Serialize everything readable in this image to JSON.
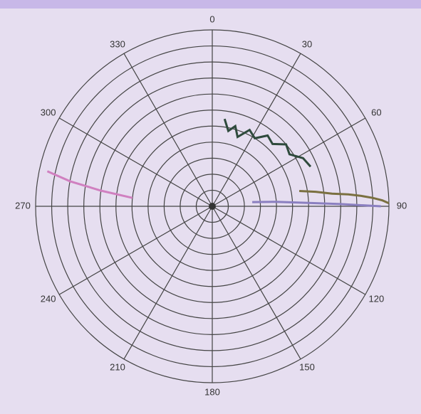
{
  "chart_data": {
    "type": "polar",
    "thetaticks": [
      0,
      30,
      60,
      90,
      120,
      150,
      180,
      210,
      240,
      270,
      300,
      330
    ],
    "direction": "clockwise",
    "zero": "top",
    "rlim": [
      0,
      11
    ],
    "rings": 11,
    "grid": true,
    "series": [
      {
        "color": "#2e4a3c",
        "theta": [
          8,
          12,
          16,
          20,
          26,
          32,
          38,
          44,
          50,
          56,
          62,
          68
        ],
        "values": [
          5.5,
          4.8,
          5.2,
          4.6,
          5.3,
          5.0,
          5.6,
          5.4,
          6.0,
          5.8,
          6.4,
          6.6
        ]
      },
      {
        "color": "#7a7040",
        "theta": [
          80,
          82,
          84,
          85,
          86,
          87,
          88,
          89
        ],
        "values": [
          5.5,
          6.5,
          7.5,
          8.5,
          9.3,
          10.0,
          10.6,
          11
        ]
      },
      {
        "color": "#8a7fc0",
        "theta": [
          84,
          86,
          88,
          89,
          90
        ],
        "values": [
          2.5,
          4.0,
          6.0,
          8.0,
          10.5
        ]
      },
      {
        "color": "#d080c0",
        "theta": [
          276,
          278,
          280,
          282
        ],
        "values": [
          5,
          7,
          9,
          10.5
        ]
      }
    ]
  }
}
